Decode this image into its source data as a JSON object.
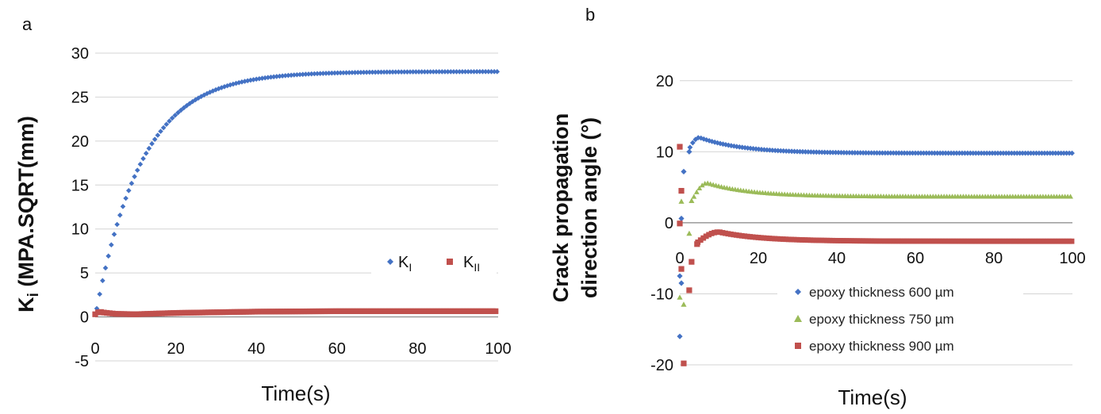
{
  "chart_data": [
    {
      "panel_label": "a",
      "type": "scatter",
      "xlabel": "Time(s)",
      "ylabel_main": "K",
      "ylabel_sub": "i",
      "ylabel_rest": " (MPA.SQRT(mm)",
      "xlim": [
        0,
        100
      ],
      "ylim": [
        -5,
        30
      ],
      "xticks": [
        "0",
        "20",
        "40",
        "60",
        "80",
        "100"
      ],
      "yticks": [
        "-5",
        "0",
        "5",
        "10",
        "15",
        "20",
        "25",
        "30"
      ],
      "grid": true,
      "legend": "right",
      "series": [
        {
          "name_main": "K",
          "name_sub": "I",
          "color": "#4472C4",
          "marker": "diamond",
          "model": "exp_rise",
          "y_inf": 27.9,
          "tau": 11.5,
          "x": [
            0,
            1,
            2,
            3,
            4,
            5,
            6,
            8,
            10,
            12,
            15,
            20,
            25,
            30,
            35,
            40,
            45,
            50,
            60,
            70,
            80,
            90,
            100
          ],
          "y": [
            0.0,
            0.8,
            2.5,
            4.5,
            6.1,
            7.6,
            9.1,
            11.6,
            13.7,
            15.6,
            18.0,
            20.8,
            23.4,
            24.8,
            25.9,
            26.6,
            27.1,
            27.3,
            27.7,
            27.8,
            27.9,
            27.9,
            27.9
          ]
        },
        {
          "name_main": "K",
          "name_sub": "II",
          "color": "#C0504D",
          "marker": "square",
          "model": "kii",
          "x": [
            0,
            1,
            2,
            5,
            10,
            20,
            40,
            60,
            80,
            100
          ],
          "y": [
            0.3,
            0.6,
            0.5,
            0.35,
            0.3,
            0.45,
            0.6,
            0.65,
            0.65,
            0.65
          ]
        }
      ]
    },
    {
      "panel_label": "b",
      "type": "scatter",
      "xlabel": "Time(s)",
      "ylabel_line1": "Crack propagation",
      "ylabel_line2": "direction angle (°)",
      "xlim": [
        0,
        100
      ],
      "ylim": [
        -20,
        25
      ],
      "xticks": [
        "0",
        "20",
        "40",
        "60",
        "80",
        "100"
      ],
      "yticks": [
        "-20",
        "-10",
        "0",
        "10",
        "20"
      ],
      "grid": true,
      "legend": "bottom-right",
      "series": [
        {
          "name": "epoxy thickness 600 µm",
          "color": "#4472C4",
          "marker": "diamond",
          "early_x": [
            0,
            0,
            0,
            0,
            1,
            2
          ],
          "early_y": [
            -16,
            -8.5,
            -7.5,
            0.6,
            7.2,
            10
          ],
          "base": 9.8,
          "peak": 12.0,
          "peak_x": 5,
          "decay": 11,
          "x": [
            5,
            10,
            20,
            40,
            60,
            80,
            100
          ],
          "y": [
            12.0,
            11.4,
            10.4,
            9.9,
            9.8,
            9.8,
            9.8
          ]
        },
        {
          "name": "epoxy thickness 750 µm",
          "color": "#9BBB59",
          "marker": "triangle",
          "early_x": [
            0,
            0,
            1,
            2,
            3
          ],
          "early_y": [
            -10.5,
            3.0,
            -11.5,
            -1.5,
            3.1
          ],
          "base": 3.7,
          "peak": 5.6,
          "peak_x": 7,
          "decay": 11,
          "x": [
            7,
            10,
            20,
            40,
            60,
            80,
            100
          ],
          "y": [
            5.6,
            5.3,
            4.3,
            3.8,
            3.7,
            3.7,
            3.7
          ]
        },
        {
          "name": "epoxy thickness 900 µm",
          "color": "#C0504D",
          "marker": "square",
          "early_x": [
            0,
            0,
            0,
            0,
            1,
            2,
            3,
            4
          ],
          "early_y": [
            10.7,
            4.5,
            -0.1,
            -6.5,
            -19.8,
            -9.5,
            -5.5,
            -3.0
          ],
          "base": -2.6,
          "peak": -1.3,
          "peak_x": 10,
          "decay": 11,
          "x": [
            10,
            20,
            40,
            60,
            80,
            100
          ],
          "y": [
            -1.3,
            -1.9,
            -2.4,
            -2.6,
            -2.6,
            -2.6
          ]
        }
      ]
    }
  ]
}
